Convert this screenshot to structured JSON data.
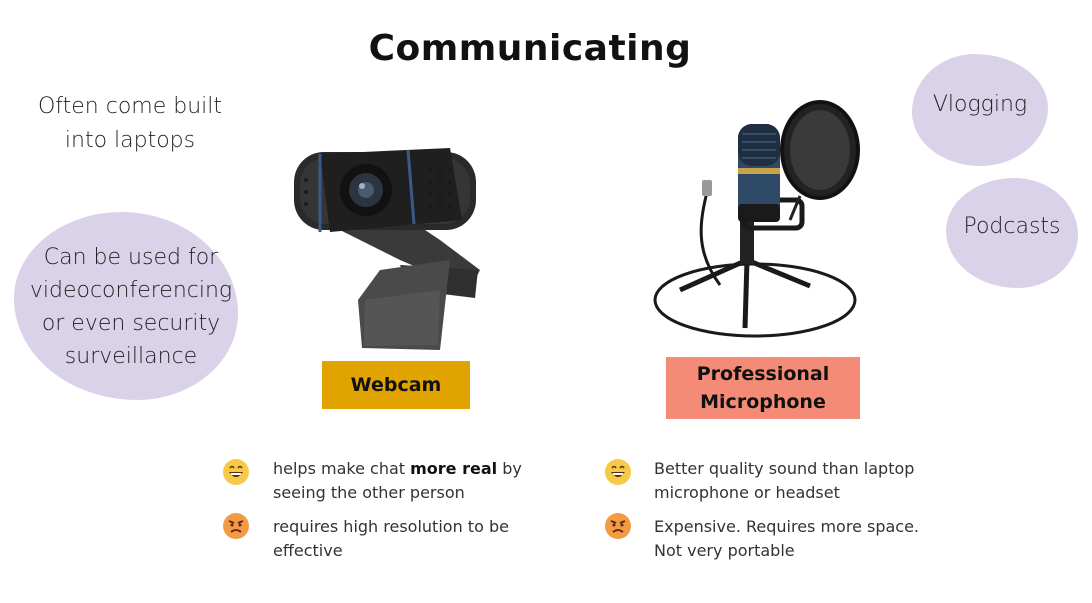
{
  "title": "Communicating",
  "notes": {
    "laptops": "Often come built into laptops",
    "videoconferencing": "Can be used for videoconferencing or even security surveillance",
    "vlogging": "Vlogging",
    "podcasts": "Podcasts"
  },
  "webcam": {
    "label": "Webcam",
    "pro": {
      "before": "helps make chat ",
      "bold": "more real",
      "after": " by seeing the other person"
    },
    "con": "requires high resolution to be effective"
  },
  "microphone": {
    "label_line1": "Professional",
    "label_line2": "Microphone",
    "pro": "Better quality sound than laptop microphone or headset",
    "con": "Expensive. Requires more space. Not very portable"
  },
  "colors": {
    "blob": "#d9d2e9",
    "webcam_label_bg": "#e0a300",
    "mic_label_bg": "#f48b76",
    "happy_emoji": "#f7c948",
    "angry_emoji": "#f39a45"
  },
  "icons": {
    "pro": "grinning-face-icon",
    "con": "angry-face-icon"
  }
}
